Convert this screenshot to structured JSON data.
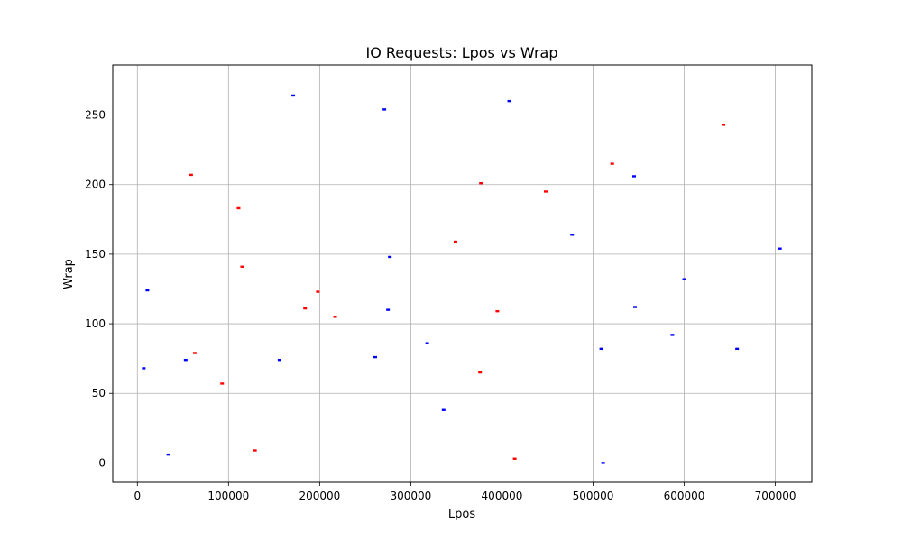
{
  "chart_data": {
    "type": "scatter",
    "title": "IO Requests: Lpos vs Wrap",
    "xlabel": "Lpos",
    "ylabel": "Wrap",
    "xlim": [
      -27000,
      740000
    ],
    "ylim": [
      -14,
      286
    ],
    "xticks": [
      0,
      100000,
      200000,
      300000,
      400000,
      500000,
      600000,
      700000
    ],
    "xtick_labels": [
      "0",
      "100000",
      "200000",
      "300000",
      "400000",
      "500000",
      "600000",
      "700000"
    ],
    "yticks": [
      0,
      50,
      100,
      150,
      200,
      250
    ],
    "ytick_labels": [
      "0",
      "50",
      "100",
      "150",
      "200",
      "250"
    ],
    "grid": true,
    "colors": {
      "blue": "#0000ff",
      "red": "#ff0000"
    },
    "series": [
      {
        "color": "blue",
        "points": [
          [
            11000,
            124
          ],
          [
            7000,
            68
          ],
          [
            34000,
            6
          ],
          [
            53000,
            74
          ],
          [
            156000,
            74
          ],
          [
            171000,
            264
          ],
          [
            261000,
            76
          ],
          [
            271000,
            254
          ],
          [
            275000,
            110
          ],
          [
            277000,
            148
          ],
          [
            318000,
            86
          ],
          [
            336000,
            38
          ],
          [
            408000,
            260
          ],
          [
            477000,
            164
          ],
          [
            509000,
            82
          ],
          [
            511000,
            0
          ],
          [
            545000,
            206
          ],
          [
            546000,
            112
          ],
          [
            587000,
            92
          ],
          [
            600000,
            132
          ],
          [
            658000,
            82
          ],
          [
            705000,
            154
          ]
        ]
      },
      {
        "color": "red",
        "points": [
          [
            59000,
            207
          ],
          [
            63000,
            79
          ],
          [
            93000,
            57
          ],
          [
            111000,
            183
          ],
          [
            115000,
            141
          ],
          [
            129000,
            9
          ],
          [
            184000,
            111
          ],
          [
            198000,
            123
          ],
          [
            217000,
            105
          ],
          [
            349000,
            159
          ],
          [
            376000,
            65
          ],
          [
            377000,
            201
          ],
          [
            395000,
            109
          ],
          [
            414000,
            3
          ],
          [
            448000,
            195
          ],
          [
            521000,
            215
          ],
          [
            643000,
            243
          ]
        ]
      }
    ]
  }
}
